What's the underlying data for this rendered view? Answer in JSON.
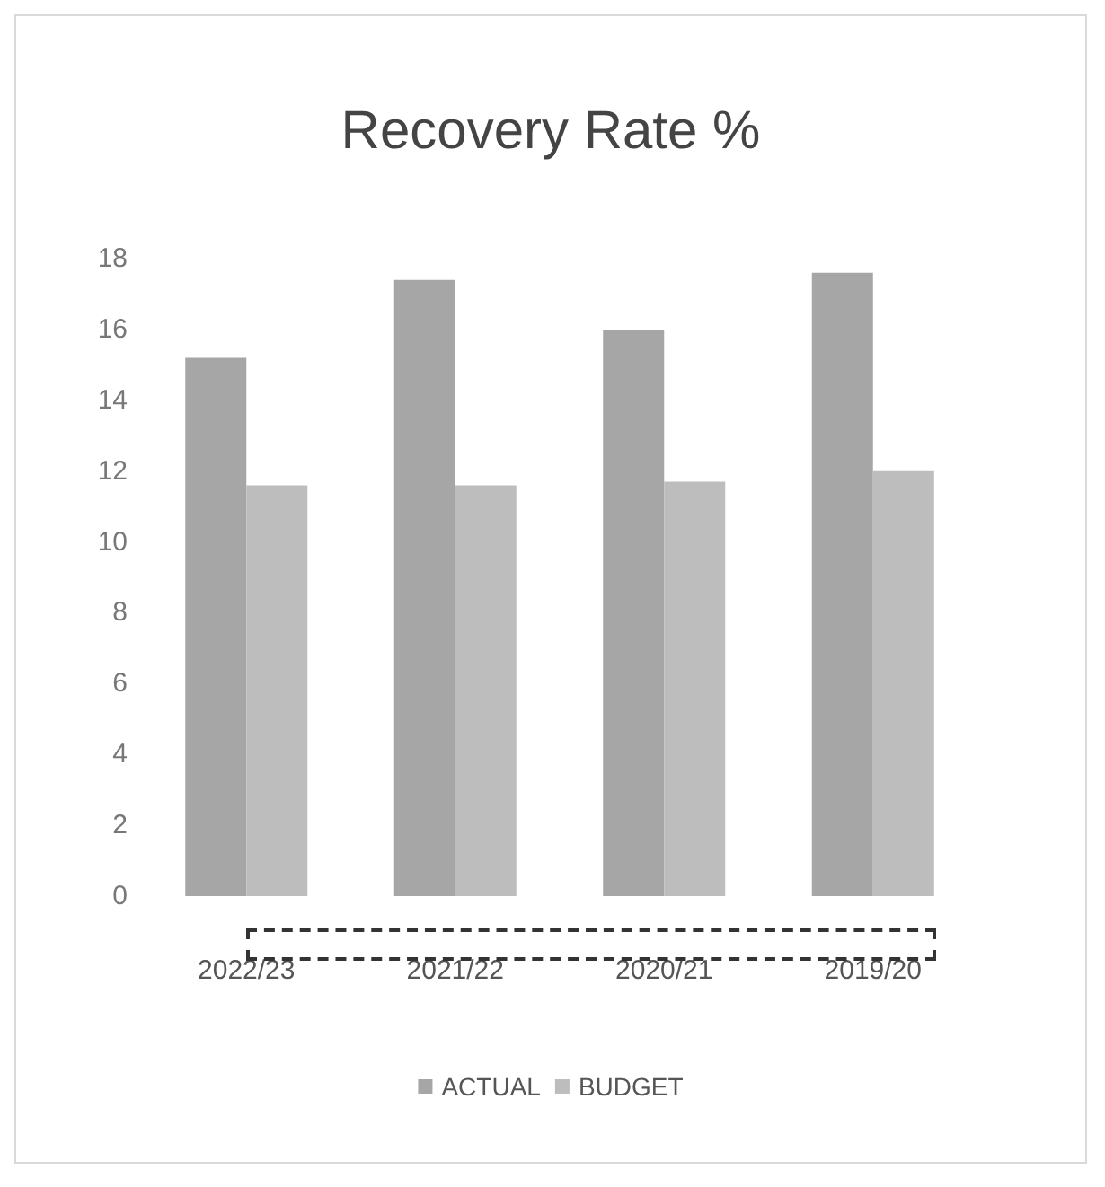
{
  "chart_data": {
    "type": "bar",
    "title": "Recovery Rate %",
    "categories": [
      "2022/23",
      "2021/22",
      "2020/21",
      "2019/20"
    ],
    "series": [
      {
        "name": "ACTUAL",
        "color": "#a6a6a6",
        "values": [
          15.2,
          17.4,
          16.0,
          17.6
        ]
      },
      {
        "name": "BUDGET",
        "color": "#bdbdbd",
        "values": [
          11.6,
          11.6,
          11.7,
          12.0
        ]
      }
    ],
    "ylim": [
      0,
      18
    ],
    "yticks": [
      0,
      2,
      4,
      6,
      8,
      10,
      12,
      14,
      16,
      18
    ],
    "grid": false,
    "legend": "bottom"
  }
}
